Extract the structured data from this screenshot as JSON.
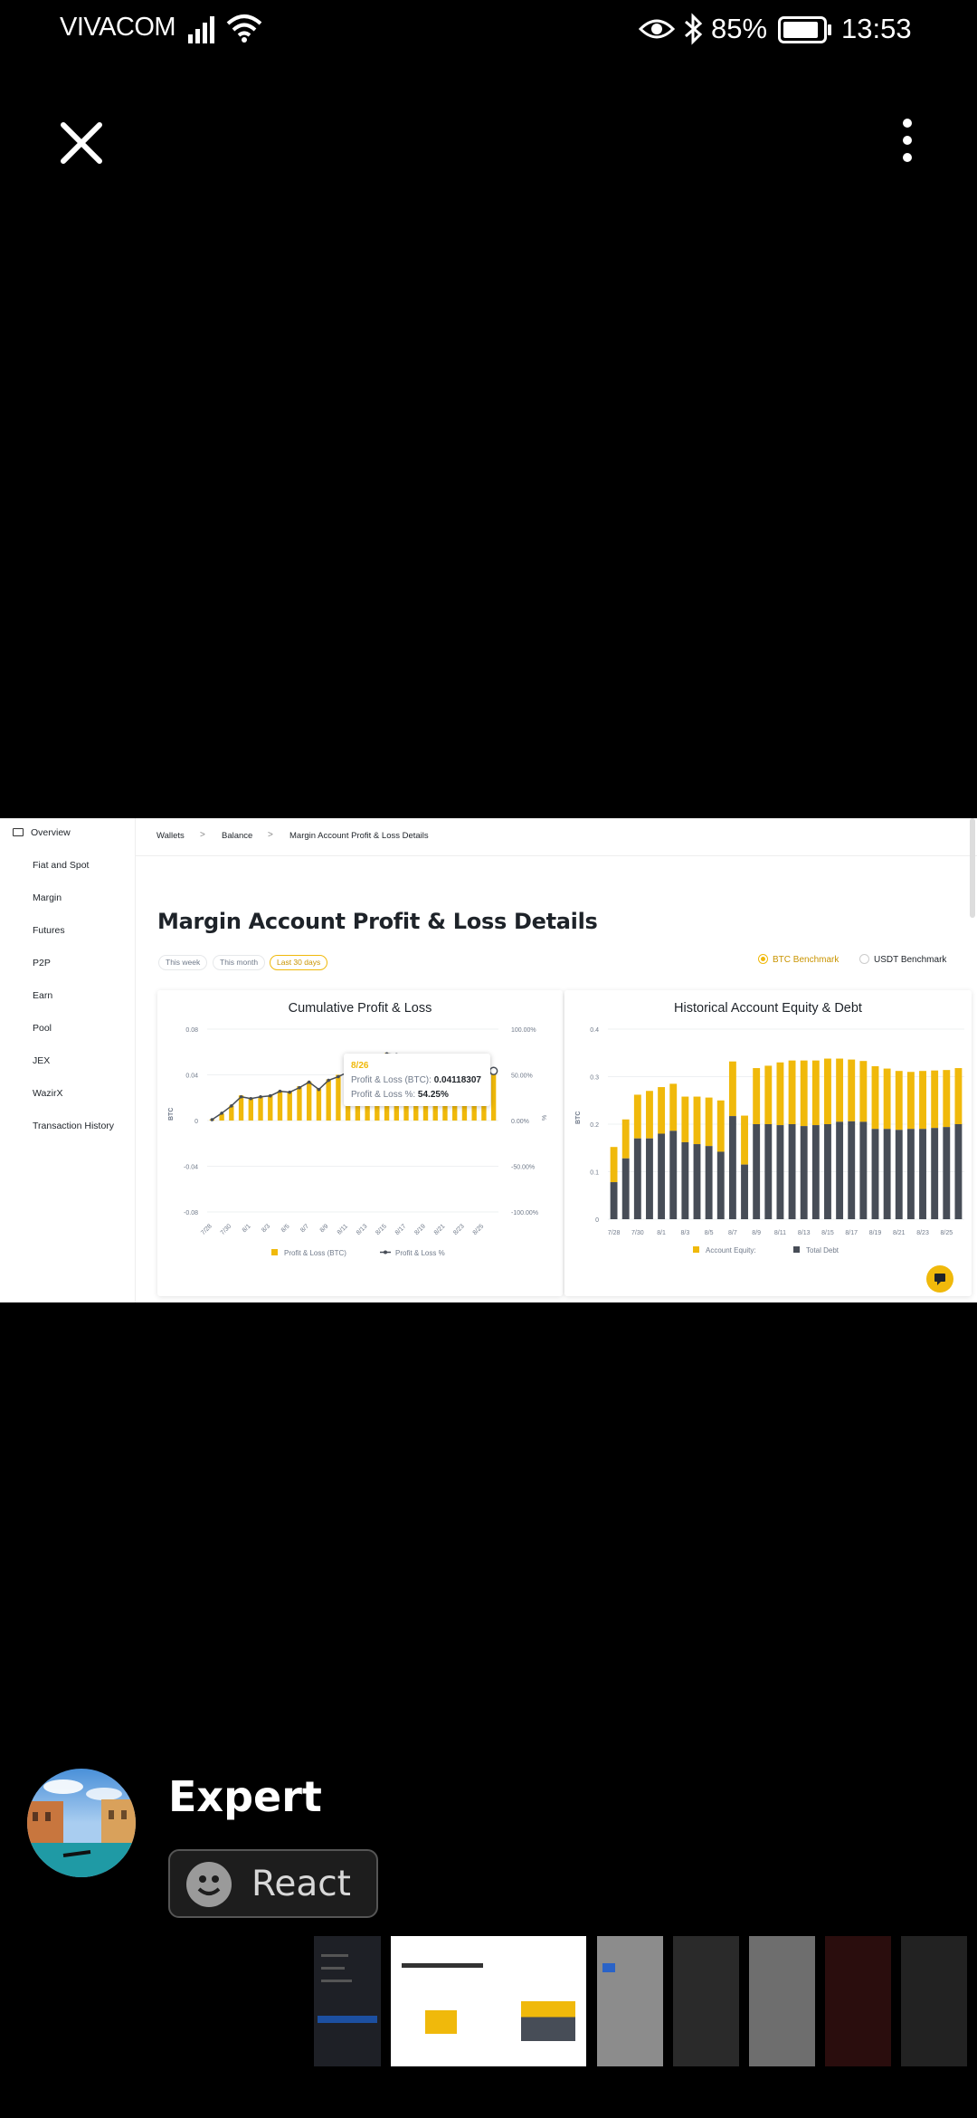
{
  "status": {
    "carrier": "VIVACOM",
    "battery": "85%",
    "time": "13:53"
  },
  "icons": {
    "close": "close-icon",
    "more": "more-vertical-icon"
  },
  "screenshot": {
    "sidebar": {
      "items": [
        "Overview",
        "Fiat and Spot",
        "Margin",
        "Futures",
        "P2P",
        "Earn",
        "Pool",
        "JEX",
        "WazirX",
        "Transaction History"
      ]
    },
    "breadcrumb": [
      "Wallets",
      "Balance",
      "Margin Account Profit & Loss Details"
    ],
    "title": "Margin Account Profit & Loss Details",
    "filters": [
      "This week",
      "This month",
      "Last 30 days"
    ],
    "selected_filter": "Last 30 days",
    "benchmarks": [
      "BTC Benchmark",
      "USDT Benchmark"
    ],
    "selected_benchmark": "BTC Benchmark",
    "accent": "#f0b90b",
    "dark_series": "#474d57"
  },
  "chart_data": [
    {
      "type": "bar",
      "title": "Cumulative Profit & Loss",
      "ylabel": "BTC",
      "y2label": "%",
      "ylim": [
        -0.08,
        0.08
      ],
      "y_ticks": [
        "0.08",
        "0.04",
        "0",
        "-0.04",
        "-0.08"
      ],
      "y2lim": [
        -100,
        100
      ],
      "y2_ticks": [
        "100.00%",
        "50.00%",
        "0.00%",
        "-50.00%",
        "-100.00%"
      ],
      "categories": [
        "7/28",
        "7/29",
        "7/30",
        "7/31",
        "8/1",
        "8/2",
        "8/3",
        "8/4",
        "8/5",
        "8/6",
        "8/7",
        "8/8",
        "8/9",
        "8/10",
        "8/11",
        "8/12",
        "8/13",
        "8/14",
        "8/15",
        "8/16",
        "8/17",
        "8/18",
        "8/19",
        "8/20",
        "8/21",
        "8/22",
        "8/23",
        "8/24",
        "8/25",
        "8/26"
      ],
      "x_ticks": [
        "7/28",
        "7/30",
        "8/1",
        "8/3",
        "8/5",
        "8/7",
        "8/9",
        "8/11",
        "8/13",
        "8/15",
        "8/17",
        "8/19",
        "8/21",
        "8/23",
        "8/25"
      ],
      "series": [
        {
          "name": "Profit & Loss (BTC)",
          "values": [
            0.001,
            0.006,
            0.013,
            0.022,
            0.02,
            0.021,
            0.022,
            0.026,
            0.025,
            0.03,
            0.034,
            0.028,
            0.036,
            0.04,
            0.043,
            0.047,
            0.052,
            0.056,
            0.059,
            0.058,
            0.049,
            0.045,
            0.045,
            0.045,
            0.045,
            0.045,
            0.045,
            0.045,
            0.045,
            0.041
          ]
        },
        {
          "name": "Profit & Loss %",
          "values": [
            1,
            8,
            16,
            26,
            24,
            26,
            27,
            32,
            31,
            36,
            42,
            34,
            44,
            48,
            53,
            58,
            64,
            70,
            73,
            72,
            60,
            55,
            55,
            55,
            55,
            55,
            55,
            55,
            55,
            54.25
          ]
        }
      ],
      "tooltip": {
        "date": "8/26",
        "pl_label": "Profit & Loss (BTC):",
        "pl_value": "0.04118307",
        "pct_label": "Profit & Loss %:",
        "pct_value": "54.25%"
      },
      "legend": [
        "Profit & Loss (BTC)",
        "Profit & Loss %"
      ]
    },
    {
      "type": "bar",
      "title": "Historical Account Equity & Debt",
      "ylabel": "BTC",
      "ylim": [
        0,
        0.4
      ],
      "y_ticks": [
        "0.4",
        "0.3",
        "0.2",
        "0.1",
        "0"
      ],
      "categories": [
        "7/28",
        "7/29",
        "7/30",
        "7/31",
        "8/1",
        "8/2",
        "8/3",
        "8/4",
        "8/5",
        "8/6",
        "8/7",
        "8/8",
        "8/9",
        "8/10",
        "8/11",
        "8/12",
        "8/13",
        "8/14",
        "8/15",
        "8/16",
        "8/17",
        "8/18",
        "8/19",
        "8/20",
        "8/21",
        "8/22",
        "8/23",
        "8/24",
        "8/25",
        "8/26"
      ],
      "x_ticks": [
        "7/28",
        "7/30",
        "8/1",
        "8/3",
        "8/5",
        "8/7",
        "8/9",
        "8/11",
        "8/13",
        "8/15",
        "8/17",
        "8/19",
        "8/21",
        "8/23",
        "8/25"
      ],
      "series": [
        {
          "name": "Account Equity:",
          "values": [
            0.152,
            0.21,
            0.262,
            0.27,
            0.278,
            0.285,
            0.258,
            0.258,
            0.256,
            0.25,
            0.332,
            0.218,
            0.318,
            0.323,
            0.33,
            0.334,
            0.334,
            0.334,
            0.338,
            0.338,
            0.336,
            0.333,
            0.322,
            0.317,
            0.312,
            0.31,
            0.312,
            0.313,
            0.314,
            0.318
          ]
        },
        {
          "name": "Total Debt",
          "values": [
            0.078,
            0.128,
            0.17,
            0.17,
            0.18,
            0.186,
            0.162,
            0.158,
            0.154,
            0.142,
            0.217,
            0.115,
            0.2,
            0.2,
            0.198,
            0.2,
            0.196,
            0.198,
            0.2,
            0.205,
            0.206,
            0.205,
            0.19,
            0.19,
            0.188,
            0.19,
            0.19,
            0.192,
            0.194,
            0.2
          ]
        }
      ],
      "legend": [
        "Account Equity:",
        "Total Debt"
      ]
    }
  ],
  "post": {
    "author": "Expert",
    "react_label": "React"
  }
}
